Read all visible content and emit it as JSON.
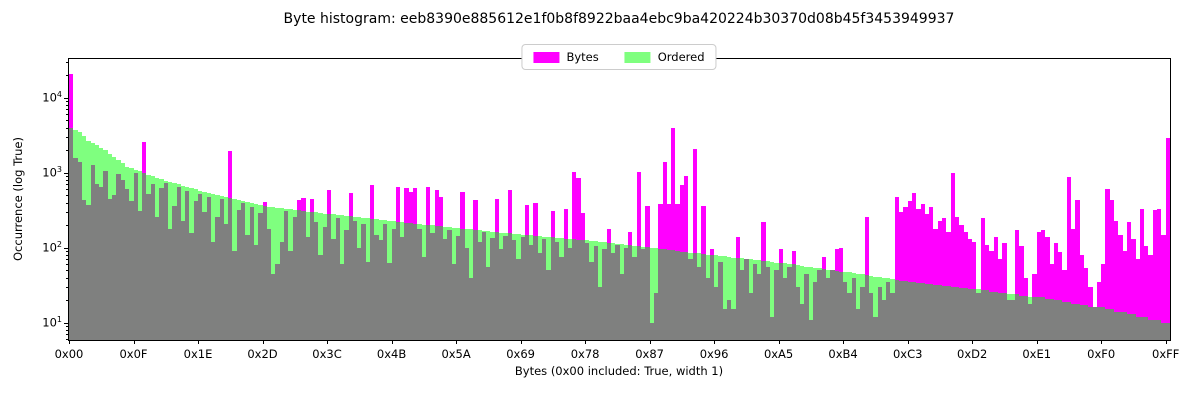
{
  "title": "Byte histogram: eeb8390e885612e1f0b8f8922baa4ebc9ba420224b30370d08b45f3453949937",
  "colors": {
    "bytes": "#ff00ff",
    "ordered": "rgba(0,255,0,0.5)",
    "overlap_rendered": "#808080",
    "axis": "#000000",
    "legend_border": "#cccccc"
  },
  "chart_data": {
    "type": "bar",
    "title": "Byte histogram: eeb8390e885612e1f0b8f8922baa4ebc9ba420224b30370d08b45f3453949937",
    "xlabel": "Bytes (0x00 included: True, width 1)",
    "ylabel": "Occurrence (log True)",
    "yscale": "log",
    "grid": false,
    "legend_position": "upper center",
    "n_bins": 256,
    "ylim_log10": [
      0.768,
      4.517
    ],
    "y_major_tick_exponents": [
      1,
      2,
      3,
      4
    ],
    "x_tick_values": [
      0,
      15,
      30,
      45,
      60,
      75,
      90,
      105,
      120,
      135,
      150,
      165,
      180,
      195,
      210,
      225,
      240,
      255
    ],
    "x_tick_labels": [
      "0x00",
      "0x0F",
      "0x1E",
      "0x2D",
      "0x3C",
      "0x4B",
      "0x5A",
      "0x69",
      "0x78",
      "0x87",
      "0x96",
      "0xA5",
      "0xB4",
      "0xC3",
      "0xD2",
      "0xE1",
      "0xF0",
      "0xFF"
    ],
    "series": [
      {
        "name": "Bytes",
        "color": "#ff00ff",
        "values": [
          21000,
          1550,
          1400,
          430,
          370,
          1250,
          700,
          640,
          1050,
          450,
          500,
          950,
          800,
          600,
          420,
          980,
          310,
          2600,
          520,
          700,
          260,
          620,
          740,
          180,
          360,
          650,
          230,
          570,
          155,
          420,
          520,
          300,
          480,
          120,
          260,
          440,
          210,
          1950,
          90,
          320,
          390,
          150,
          350,
          110,
          290,
          410,
          180,
          45,
          60,
          120,
          310,
          90,
          260,
          435,
          460,
          140,
          440,
          220,
          80,
          190,
          590,
          130,
          250,
          60,
          170,
          530,
          230,
          100,
          205,
          65,
          680,
          150,
          125,
          210,
          63,
          180,
          650,
          140,
          620,
          560,
          625,
          180,
          75,
          640,
          155,
          590,
          480,
          130,
          170,
          60,
          145,
          560,
          100,
          40,
          430,
          120,
          160,
          55,
          135,
          450,
          95,
          145,
          580,
          125,
          70,
          140,
          370,
          110,
          390,
          85,
          130,
          50,
          310,
          120,
          75,
          330,
          100,
          1030,
          850,
          290,
          115,
          65,
          105,
          30,
          95,
          180,
          85,
          110,
          45,
          100,
          160,
          75,
          1030,
          95,
          360,
          10,
          25,
          380,
          1400,
          380,
          4000,
          380,
          680,
          900,
          70,
          2100,
          55,
          360,
          40,
          95,
          30,
          65,
          15,
          20,
          15,
          140,
          50,
          70,
          25,
          60,
          45,
          220,
          55,
          12,
          50,
          95,
          40,
          55,
          90,
          30,
          18,
          45,
          11,
          35,
          50,
          75,
          40,
          50,
          95,
          100,
          35,
          25,
          40,
          15,
          30,
          260,
          25,
          12,
          30,
          20,
          35,
          25,
          475,
          300,
          350,
          420,
          530,
          330,
          380,
          280,
          350,
          180,
          230,
          250,
          160,
          995,
          260,
          200,
          160,
          130,
          120,
          25,
          250,
          110,
          90,
          140,
          70,
          116,
          20,
          20,
          170,
          106,
          40,
          18,
          44,
          160,
          170,
          138,
          60,
          116,
          88,
          50,
          890,
          180,
          437,
          80,
          54,
          30,
          16,
          35,
          60,
          606,
          437,
          224,
          146,
          90,
          220,
          130,
          70,
          324,
          104,
          80,
          320,
          324,
          146,
          2950
        ]
      },
      {
        "name": "Ordered",
        "color": "rgba(0,255,0,0.5)",
        "values": [
          3980,
          3760,
          3550,
          3090,
          2690,
          2500,
          2320,
          2150,
          2000,
          1800,
          1630,
          1470,
          1330,
          1200,
          1140,
          1090,
          1040,
          990,
          940,
          895,
          850,
          820,
          787,
          757,
          728,
          700,
          673,
          647,
          622,
          598,
          575,
          557,
          540,
          522,
          506,
          490,
          474,
          459,
          445,
          430,
          417,
          404,
          391,
          378,
          366,
          355,
          349,
          344,
          339,
          334,
          329,
          324,
          319,
          314,
          309,
          304,
          300,
          295,
          290,
          286,
          282,
          278,
          273,
          269,
          266,
          262,
          258,
          254,
          250,
          246,
          243,
          239,
          236,
          232,
          229,
          225,
          222,
          219,
          215,
          212,
          209,
          206,
          203,
          200,
          198,
          195,
          192,
          190,
          187,
          185,
          182,
          180,
          177,
          175,
          172,
          170,
          167,
          165,
          163,
          161,
          158,
          156,
          155,
          153,
          151,
          149,
          147,
          146,
          144,
          142,
          141,
          139,
          137,
          136,
          134,
          132,
          131,
          129,
          128,
          126,
          126,
          124,
          122,
          120,
          118,
          117,
          115,
          113,
          111,
          110,
          108,
          106,
          105,
          103,
          101,
          100,
          98,
          97,
          95,
          94,
          92,
          91,
          89,
          88,
          86,
          85,
          84,
          82,
          81,
          80,
          79,
          78,
          77,
          75,
          74,
          73,
          72,
          71,
          70,
          69,
          68,
          67,
          66,
          64,
          63,
          63,
          62,
          61,
          60,
          58,
          57,
          56,
          55,
          54,
          53,
          52,
          51,
          50,
          49,
          48,
          48,
          47,
          46,
          45,
          44,
          43,
          42,
          41,
          41,
          40,
          39,
          38,
          37,
          36,
          36,
          35,
          35,
          34,
          34,
          33,
          33,
          32,
          32,
          31,
          31,
          30,
          30,
          29,
          29,
          28,
          28,
          28,
          27,
          27,
          26,
          26,
          25,
          25,
          24,
          24,
          24,
          23,
          23,
          22,
          22,
          22,
          22,
          21,
          21,
          20,
          20,
          19,
          19,
          18,
          18,
          17,
          17,
          16,
          16,
          16,
          16,
          15,
          15,
          14,
          14,
          14,
          13,
          13,
          12,
          12,
          12,
          11,
          11,
          11,
          10,
          10
        ]
      }
    ]
  }
}
